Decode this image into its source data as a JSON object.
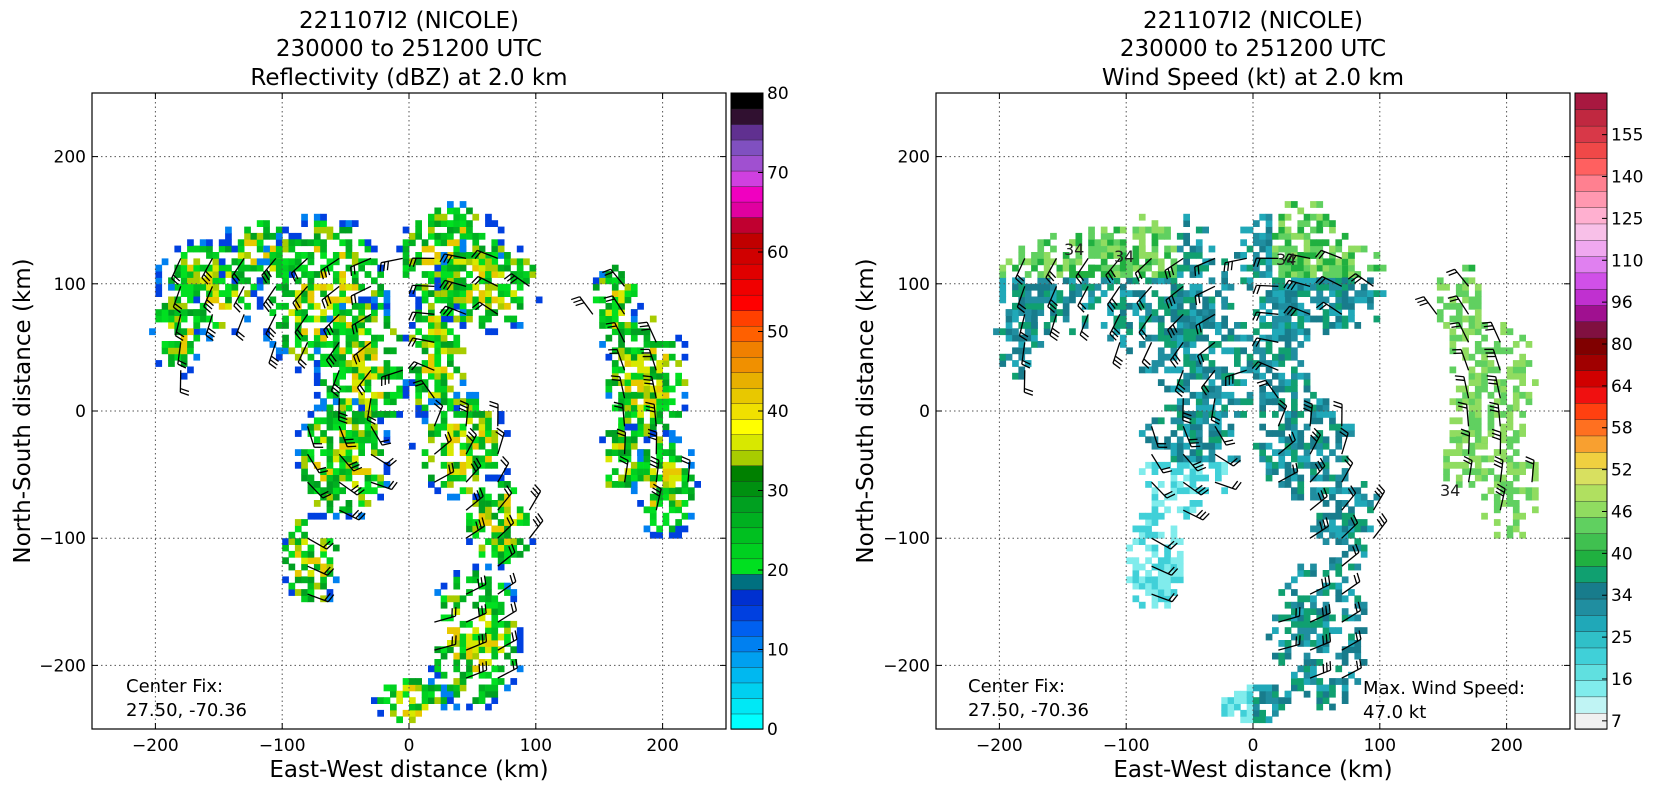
{
  "chart_data": [
    {
      "type": "heatmap",
      "title_lines": [
        "221107I2 (NICOLE)",
        "230000 to 251200 UTC",
        "Reflectivity (dBZ) at 2.0 km"
      ],
      "xlabel": "East-West distance (km)",
      "ylabel": "North-South distance (km)",
      "xlim": [
        -250,
        250
      ],
      "ylim": [
        -250,
        250
      ],
      "xticks": [
        -200,
        -100,
        0,
        100,
        200
      ],
      "yticks": [
        -200,
        -100,
        0,
        100,
        200
      ],
      "grid": true,
      "annotations": [
        "Center Fix:",
        "27.50, -70.36"
      ],
      "colorbar": {
        "min": 0,
        "max": 80,
        "tick_values": [
          0,
          10,
          20,
          30,
          40,
          50,
          60,
          70,
          80
        ],
        "colors": [
          "#00ffff",
          "#00e8f5",
          "#00d0f0",
          "#00b8f0",
          "#00a0f0",
          "#0080f0",
          "#0060f0",
          "#0040e0",
          "#0030d0",
          "#007080",
          "#00e020",
          "#00d020",
          "#00c020",
          "#00b020",
          "#00a020",
          "#009010",
          "#008000",
          "#a8cc00",
          "#d8e800",
          "#ffff00",
          "#f0e000",
          "#e8c800",
          "#e8b000",
          "#f09000",
          "#f08000",
          "#ff6000",
          "#ff4000",
          "#ff0000",
          "#f00000",
          "#e00000",
          "#d00000",
          "#c00000",
          "#c00030",
          "#e000a0",
          "#f000c0",
          "#d040e0",
          "#a050d0",
          "#8050c0",
          "#603090",
          "#301030",
          "#000000"
        ]
      },
      "wind_barbs": true
    },
    {
      "type": "heatmap",
      "title_lines": [
        "221107I2 (NICOLE)",
        "230000 to 251200 UTC",
        "Wind Speed (kt) at 2.0 km"
      ],
      "xlabel": "East-West distance (km)",
      "ylabel": "North-South distance (km)",
      "xlim": [
        -250,
        250
      ],
      "ylim": [
        -250,
        250
      ],
      "xticks": [
        -200,
        -100,
        0,
        100,
        200
      ],
      "yticks": [
        -200,
        -100,
        0,
        100,
        200
      ],
      "grid": true,
      "annotations": [
        "Center Fix:",
        "27.50, -70.36",
        "Max. Wind Speed:",
        "47.0 kt"
      ],
      "contour_labels": [
        "34",
        "34",
        "34",
        "34"
      ],
      "colorbar": {
        "tick_labels": [
          "7",
          "16",
          "25",
          "34",
          "40",
          "46",
          "52",
          "58",
          "64",
          "80",
          "96",
          "110",
          "125",
          "140",
          "155"
        ],
        "colors": [
          "#f0f0f0",
          "#c0f4f4",
          "#80ecec",
          "#60e0e0",
          "#40d0d8",
          "#30c0c8",
          "#20a8b8",
          "#208ea0",
          "#187c8c",
          "#10a070",
          "#20b040",
          "#40c050",
          "#60d060",
          "#90dc60",
          "#b0e060",
          "#d8e060",
          "#f0d040",
          "#f8a030",
          "#ff7020",
          "#ff4010",
          "#f01010",
          "#d00000",
          "#a00000",
          "#800000",
          "#801040",
          "#a01090",
          "#c030d0",
          "#d050e8",
          "#e080f0",
          "#f0a8f0",
          "#f8c0e8",
          "#ffb0d0",
          "#ff98b0",
          "#ff8090",
          "#ff6060",
          "#f04848",
          "#d83848",
          "#c02840",
          "#a81840"
        ]
      },
      "wind_barbs": true
    }
  ]
}
